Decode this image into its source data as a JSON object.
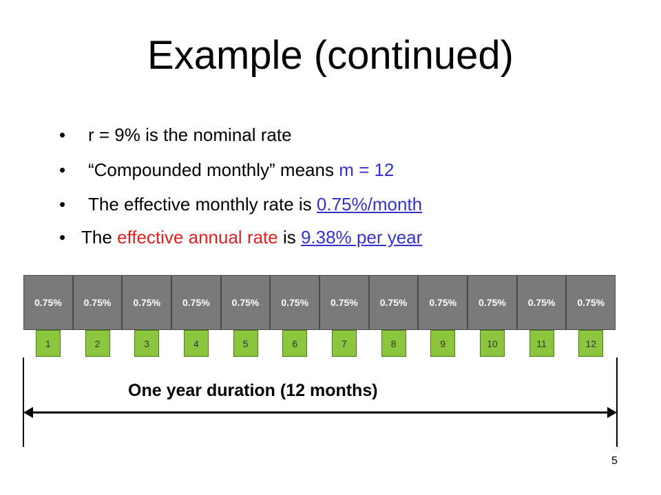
{
  "slide": {
    "title": "Example (continued)",
    "page_number": "5"
  },
  "bullets": {
    "marker": "•",
    "b1": {
      "text": "r = 9% is the nominal rate"
    },
    "b2": {
      "pre": "“Compounded monthly” means ",
      "highlight": "m = 12"
    },
    "b3": {
      "pre": "The effective monthly rate is ",
      "link": "0.75%/month"
    },
    "b4": {
      "pre": "The ",
      "highlight": "effective annual rate",
      "mid": " is ",
      "link": "9.38% per year"
    }
  },
  "timeline": {
    "rate_cells": [
      "0.75%",
      "0.75%",
      "0.75%",
      "0.75%",
      "0.75%",
      "0.75%",
      "0.75%",
      "0.75%",
      "0.75%",
      "0.75%",
      "0.75%",
      "0.75%"
    ],
    "months": [
      "1",
      "2",
      "3",
      "4",
      "5",
      "6",
      "7",
      "8",
      "9",
      "10",
      "11",
      "12"
    ],
    "duration_label": "One year duration (12 months)"
  },
  "colors": {
    "blue_text": "#3333cc",
    "red_text": "#e02020",
    "rate_cell_fill": "#7a7a7a",
    "month_box_fill": "#8cc63f"
  }
}
